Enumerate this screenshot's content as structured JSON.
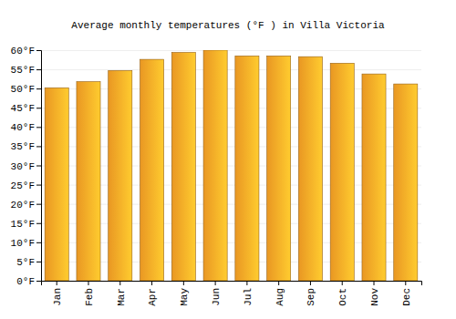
{
  "chart_data": {
    "type": "bar",
    "title": "Average monthly temperatures (°F ) in Villa Victoria",
    "categories": [
      "Jan",
      "Feb",
      "Mar",
      "Apr",
      "May",
      "Jun",
      "Jul",
      "Aug",
      "Sep",
      "Oct",
      "Nov",
      "Dec"
    ],
    "values": [
      50.2,
      51.8,
      54.7,
      57.6,
      59.4,
      60.0,
      58.5,
      58.5,
      58.3,
      56.6,
      53.8,
      51.2
    ],
    "color": "#ffa526",
    "ylim": [
      0,
      60
    ],
    "yticks": [
      {
        "value": 0,
        "label": "0°F"
      },
      {
        "value": 5,
        "label": "5°F"
      },
      {
        "value": 10,
        "label": "10°F"
      },
      {
        "value": 15,
        "label": "15°F"
      },
      {
        "value": 20,
        "label": "20°F"
      },
      {
        "value": 25,
        "label": "25°F"
      },
      {
        "value": 30,
        "label": "30°F"
      },
      {
        "value": 35,
        "label": "35°F"
      },
      {
        "value": 40,
        "label": "40°F"
      },
      {
        "value": 45,
        "label": "45°F"
      },
      {
        "value": 50,
        "label": "50°F"
      },
      {
        "value": 55,
        "label": "55°F"
      },
      {
        "value": 60,
        "label": "60°F"
      }
    ],
    "grid": true
  }
}
